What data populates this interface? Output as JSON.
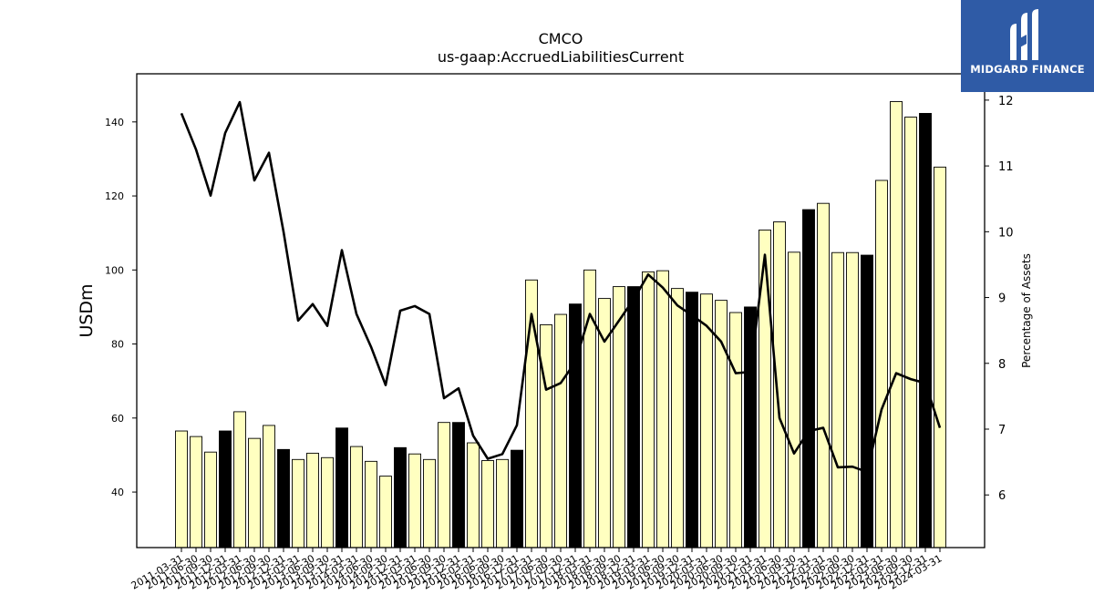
{
  "logo": {
    "text": "MIDGARD FINANCE",
    "background": "#2f5ba6"
  },
  "chart_data": {
    "type": "bar+line",
    "title": "CMCO",
    "subtitle": "us-gaap:AccruedLiabilitiesCurrent",
    "ylabel": "USDm",
    "y2label": "Percentage of Assets",
    "ylim": [
      25,
      153
    ],
    "y2lim": [
      5.2,
      12.4
    ],
    "yticks": [
      40,
      60,
      80,
      100,
      120,
      140
    ],
    "y2ticks": [
      6,
      7,
      8,
      9,
      10,
      11,
      12
    ],
    "bar_color": "#ffffc0",
    "highlight_color": "#000000",
    "categories": [
      "2011-03-31",
      "2011-06-30",
      "2011-09-30",
      "2011-12-31",
      "2012-03-31",
      "2012-06-30",
      "2012-09-30",
      "2012-12-31",
      "2013-03-31",
      "2013-06-30",
      "2013-09-30",
      "2013-12-31",
      "2014-03-31",
      "2014-06-30",
      "2014-09-30",
      "2014-12-31",
      "2015-03-31",
      "2015-06-30",
      "2015-09-30",
      "2015-12-31",
      "2016-03-31",
      "2016-06-30",
      "2016-09-30",
      "2016-12-31",
      "2017-03-31",
      "2017-06-30",
      "2017-09-30",
      "2017-12-31",
      "2018-03-31",
      "2018-06-30",
      "2018-09-30",
      "2018-12-31",
      "2019-03-31",
      "2019-06-30",
      "2019-09-30",
      "2019-12-31",
      "2020-03-31",
      "2020-06-30",
      "2020-09-30",
      "2020-12-31",
      "2021-03-31",
      "2021-06-30",
      "2021-09-30",
      "2021-12-31",
      "2022-03-31",
      "2022-06-30",
      "2022-09-30",
      "2022-12-31",
      "2023-03-31",
      "2023-06-30",
      "2023-09-30",
      "2023-12-31",
      "2024-03-31"
    ],
    "xtick_labels": [
      "2011-03-31",
      "2011-06-30",
      "2011-09-30",
      "2011-12-31",
      "2012-03-31",
      "2012-06-30",
      "2012-09-30",
      "2012-12-31",
      "2013-03-31",
      "2013-06-30",
      "2013-09-30",
      "2013-12-31",
      "2014-03-31",
      "2014-06-30",
      "2014-09-30",
      "2014-12-31",
      "2015-03-31",
      "2015-06-30",
      "2015-09-30",
      "2015-12-31",
      "2016-03-31",
      "2016-06-30",
      "2016-09-30",
      "2016-12-31",
      "2017-03-31",
      "2017-06-30",
      "2017-09-30",
      "2017-12-31",
      "2018-03-31",
      "2018-06-30",
      "2018-09-30",
      "2018-12-31",
      "2019-03-31",
      "2019-06-30",
      "2019-09-30",
      "2019-12-31",
      "2020-03-31",
      "2020-06-30",
      "2020-09-30",
      "2020-12-31",
      "2021-03-31",
      "2021-06-30",
      "2021-09-30",
      "2021-12-31",
      "2022-03-31",
      "2022-06-30",
      "2022-09-30",
      "2022-12-31",
      "2023-03-31",
      "2023-06-30",
      "2023-09-30",
      "2023-12-31",
      "2024-03-31"
    ],
    "values": [
      56.5,
      55.0,
      50.8,
      56.5,
      61.7,
      54.5,
      58.0,
      51.5,
      48.8,
      50.5,
      49.3,
      57.3,
      52.3,
      48.3,
      44.3,
      52.0,
      50.3,
      48.8,
      58.8,
      58.8,
      53.3,
      48.5,
      48.8,
      51.3,
      97.3,
      85.2,
      88.0,
      90.8,
      100.0,
      92.3,
      95.5,
      95.5,
      99.5,
      99.8,
      95.0,
      94.0,
      93.5,
      91.8,
      88.5,
      90.0,
      110.8,
      113.0,
      104.8,
      116.3,
      118.0,
      104.7,
      104.7,
      104.0,
      124.2,
      145.5,
      141.3,
      142.3,
      127.8
    ],
    "highlight": [
      false,
      false,
      false,
      true,
      false,
      false,
      false,
      true,
      false,
      false,
      false,
      true,
      false,
      false,
      false,
      true,
      false,
      false,
      false,
      true,
      false,
      false,
      false,
      true,
      false,
      false,
      false,
      true,
      false,
      false,
      false,
      true,
      false,
      false,
      false,
      true,
      false,
      false,
      false,
      true,
      false,
      false,
      false,
      true,
      false,
      false,
      false,
      true,
      false,
      false,
      false,
      true,
      false
    ],
    "pct_of_assets": [
      11.8,
      11.25,
      10.55,
      11.5,
      11.97,
      10.78,
      11.2,
      10.0,
      8.65,
      8.9,
      8.57,
      9.72,
      8.75,
      8.25,
      7.67,
      8.8,
      8.87,
      8.75,
      7.47,
      7.62,
      6.9,
      6.55,
      6.62,
      7.06,
      8.75,
      7.6,
      7.7,
      8.02,
      8.75,
      8.33,
      8.65,
      8.97,
      9.35,
      9.15,
      8.88,
      8.73,
      8.57,
      8.33,
      7.85,
      7.87,
      9.65,
      7.17,
      6.63,
      6.97,
      7.02,
      6.42,
      6.43,
      6.35,
      7.3,
      7.85,
      7.76,
      7.7,
      7.02
    ]
  }
}
